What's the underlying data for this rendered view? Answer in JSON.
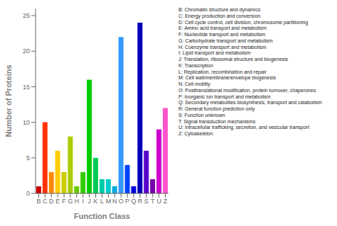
{
  "chart_data": {
    "type": "bar",
    "categories": [
      "B",
      "C",
      "D",
      "E",
      "F",
      "G",
      "H",
      "I",
      "J",
      "K",
      "L",
      "M",
      "N",
      "O",
      "P",
      "Q",
      "R",
      "S",
      "T",
      "U",
      "Z"
    ],
    "values": [
      1,
      10,
      3,
      6,
      3,
      8,
      1,
      3,
      16,
      5,
      2,
      2,
      1,
      22,
      4,
      1,
      24,
      6,
      2,
      9,
      12
    ],
    "colors": [
      "#cc0000",
      "#ff3300",
      "#ff8800",
      "#ffcc00",
      "#cccc00",
      "#aacc00",
      "#66cc00",
      "#33cc00",
      "#00cc00",
      "#00cc55",
      "#00ccaa",
      "#00cccc",
      "#00aadd",
      "#3399ff",
      "#0044ff",
      "#0000dd",
      "#0000bb",
      "#5500cc",
      "#7700aa",
      "#cc00cc",
      "#ff55cc"
    ],
    "xlabel": "Function Class",
    "ylabel": "Number of Proteins",
    "ylim": [
      0,
      26
    ],
    "yticks": [
      0,
      5,
      10,
      15,
      20,
      25
    ],
    "grid": false,
    "annotations": [
      "B: Chromatin structure and dynamics",
      "C: Energy production and conversion",
      "D: Cell cycle control, cell division, chromosome partitioning",
      "E: Amino acid transport and metabolism",
      "F: Nucleotide transport and metabolism",
      "G: Carbohydrate transport and metabolism",
      "H: Coenzyme transport and metabolism",
      "I: Lipid transport and metabolism",
      "J: Translation, ribosomal structure and biogenesis",
      "K: Transcription",
      "L: Replication, recombination and repair",
      "M: Cell wall/membrane/envelope biogenesis",
      "N: Cell motility",
      "O: Posttranslational modification, protein turnover, chaperones",
      "P: Inorganic ion transport and metabolism",
      "Q: Secondary metabolites biosynthesis, transport and catabolism",
      "R: General function prediction only",
      "S: Function unknown",
      "T: Signal transduction mechanisms",
      "U: Intracellular trafficking, secretion, and vesicular transport",
      "Z: Cytoskeleton"
    ]
  }
}
